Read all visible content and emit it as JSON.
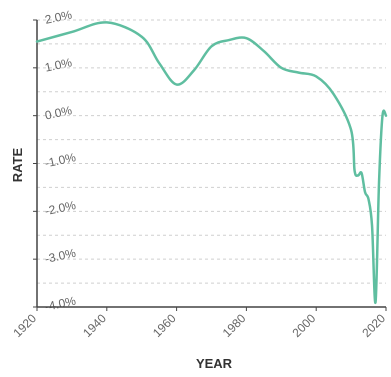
{
  "chart_data": {
    "type": "line",
    "xlabel": "YEAR",
    "ylabel": "RATE",
    "xlim": [
      1920,
      2020
    ],
    "ylim": [
      -4.0,
      2.0
    ],
    "x_ticks": [
      1920,
      1940,
      1960,
      1980,
      2000,
      2020
    ],
    "x_tick_labels": [
      "1920",
      "1940",
      "1960",
      "1980",
      "2000",
      "2020"
    ],
    "y_ticks": [
      2.0,
      1.0,
      0.0,
      -1.0,
      -2.0,
      -3.0,
      -4.0
    ],
    "y_tick_labels": [
      "2.0%",
      "1.0%",
      "0.0%",
      "-1.0%",
      "-2.0%",
      "-3.0%",
      "-4.0%"
    ],
    "minor_y_grid_step": 0.5,
    "grid": "horizontal-dashed",
    "line_color": "#5fbea0",
    "series": [
      {
        "x": [
          1920,
          1930,
          1940,
          1950,
          1955,
          1960,
          1965,
          1970,
          1975,
          1980,
          1985,
          1990,
          1995,
          2000,
          2005,
          2010,
          2011,
          2012,
          2013,
          2014,
          2015,
          2016,
          2017,
          2018,
          2019,
          2020
        ],
        "y": [
          1.55,
          1.75,
          1.95,
          1.65,
          1.1,
          0.65,
          0.95,
          1.45,
          1.58,
          1.62,
          1.35,
          1.0,
          0.9,
          0.82,
          0.45,
          -0.3,
          -1.15,
          -1.25,
          -1.2,
          -1.6,
          -1.75,
          -2.3,
          -3.9,
          -1.4,
          0.0,
          0.0
        ]
      }
    ]
  }
}
